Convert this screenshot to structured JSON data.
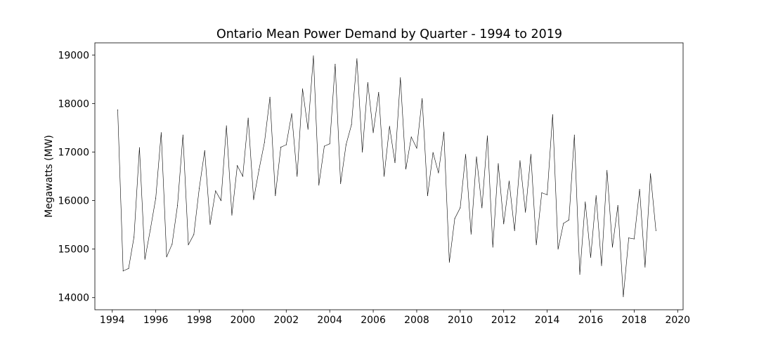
{
  "chart_data": {
    "type": "line",
    "title": "Ontario Mean Power Demand by Quarter - 1994 to 2019",
    "xlabel": "",
    "ylabel": "Megawatts (MW)",
    "xlim": [
      1993.2,
      2020.25
    ],
    "ylim": [
      13750,
      19250
    ],
    "xticks": [
      1994,
      1996,
      1998,
      2000,
      2002,
      2004,
      2006,
      2008,
      2010,
      2012,
      2014,
      2016,
      2018,
      2020
    ],
    "yticks": [
      14000,
      15000,
      16000,
      17000,
      18000,
      19000
    ],
    "grid": false,
    "line_color": "#000000",
    "series": [
      {
        "x": [
          1994.25,
          1994.5,
          1994.75,
          1995.0,
          1995.25,
          1995.5,
          1995.75,
          1996.0,
          1996.25,
          1996.5,
          1996.75,
          1997.0,
          1997.25,
          1997.5,
          1997.75,
          1998.0,
          1998.25,
          1998.5,
          1998.75,
          1999.0,
          1999.25,
          1999.5,
          1999.75,
          2000.0,
          2000.25,
          2000.5,
          2000.75,
          2001.0,
          2001.25,
          2001.5,
          2001.75,
          2002.0,
          2002.25,
          2002.5,
          2002.75,
          2003.0,
          2003.25,
          2003.5,
          2003.75,
          2004.0,
          2004.25,
          2004.5,
          2004.75,
          2005.0,
          2005.25,
          2005.5,
          2005.75,
          2006.0,
          2006.25,
          2006.5,
          2006.75,
          2007.0,
          2007.25,
          2007.5,
          2007.75,
          2008.0,
          2008.25,
          2008.5,
          2008.75,
          2009.0,
          2009.25,
          2009.5,
          2009.75,
          2010.0,
          2010.25,
          2010.5,
          2010.75,
          2011.0,
          2011.25,
          2011.5,
          2011.75,
          2012.0,
          2012.25,
          2012.5,
          2012.75,
          2013.0,
          2013.25,
          2013.5,
          2013.75,
          2014.0,
          2014.25,
          2014.5,
          2014.75,
          2015.0,
          2015.25,
          2015.5,
          2015.75,
          2016.0,
          2016.25,
          2016.5,
          2016.75,
          2017.0,
          2017.25,
          2017.5,
          2017.75,
          2018.0,
          2018.25,
          2018.5,
          2018.75,
          2019.0
        ],
        "values": [
          17870,
          14550,
          14600,
          15250,
          17090,
          14790,
          15400,
          16050,
          17400,
          14840,
          15100,
          15900,
          17350,
          15090,
          15300,
          16250,
          17030,
          15510,
          16200,
          16000,
          17540,
          15700,
          16720,
          16500,
          17700,
          16020,
          16640,
          17200,
          18130,
          16100,
          17100,
          17150,
          17790,
          16500,
          18300,
          17470,
          18980,
          16320,
          17120,
          17170,
          18810,
          16350,
          17150,
          17560,
          18920,
          17000,
          18430,
          17400,
          18230,
          16500,
          17530,
          16780,
          18530,
          16650,
          17310,
          17080,
          18100,
          16100,
          16990,
          16570,
          17410,
          14730,
          15630,
          15850,
          16950,
          15310,
          16900,
          15850,
          17330,
          15040,
          16760,
          15520,
          16400,
          15380,
          16820,
          15760,
          16950,
          15090,
          16160,
          16120,
          17770,
          15000,
          15530,
          15600,
          17350,
          14480,
          15970,
          14830,
          16100,
          14660,
          16620,
          15040,
          15900,
          14020,
          15230,
          15210,
          16230,
          14630,
          16550,
          15380
        ]
      }
    ]
  }
}
